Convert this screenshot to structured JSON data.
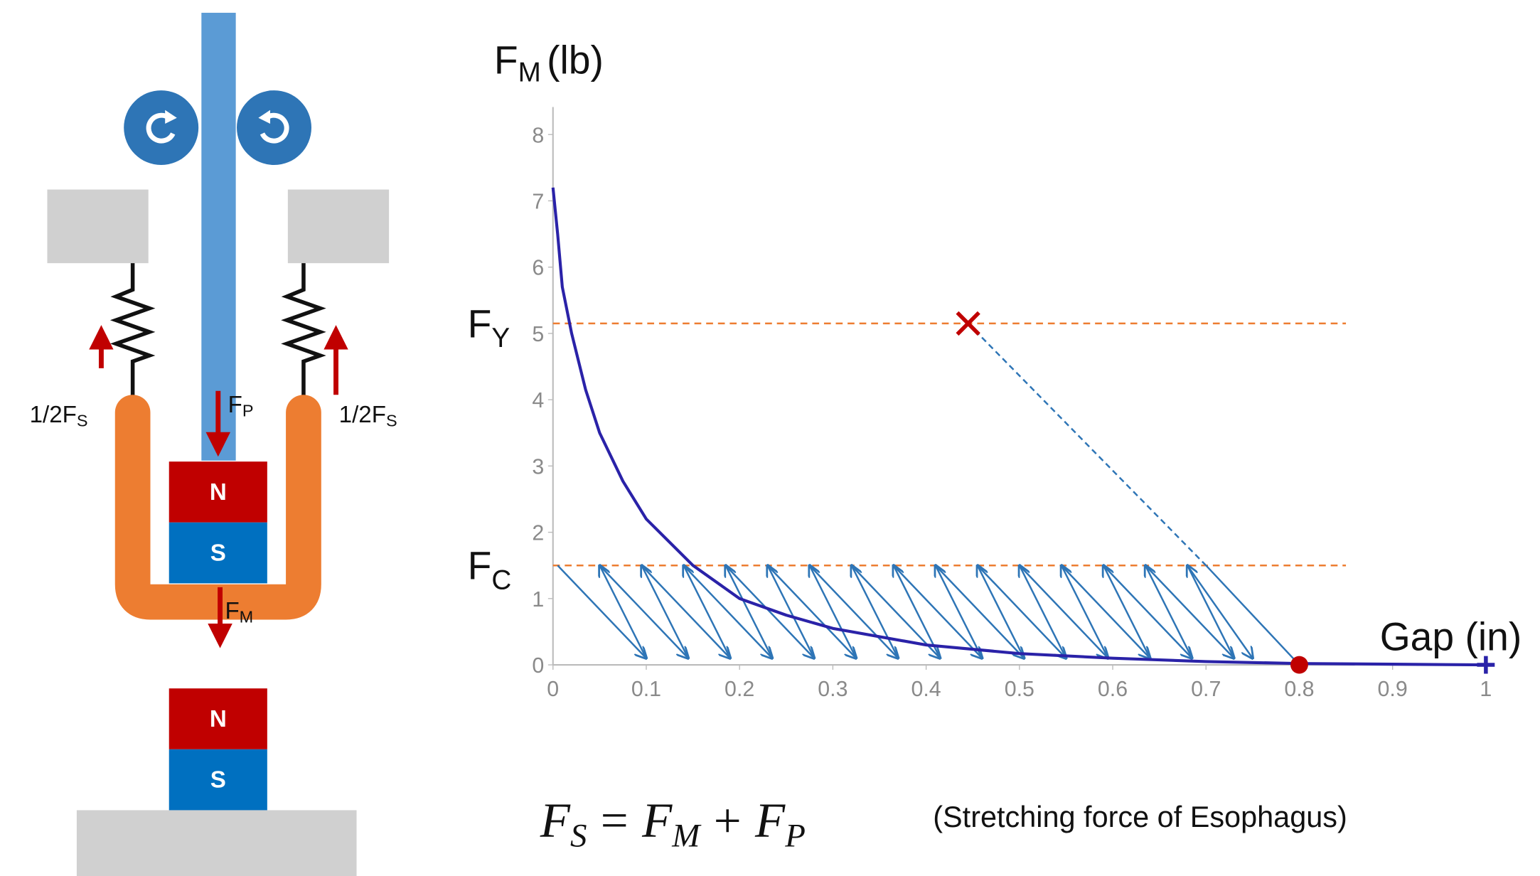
{
  "diagram": {
    "half_fs_left": {
      "base": "1/2F",
      "sub": "S"
    },
    "half_fs_right": {
      "base": "1/2F",
      "sub": "S"
    },
    "fp": {
      "base": "F",
      "sub": "P"
    },
    "fm": {
      "base": "F",
      "sub": "M"
    },
    "magnet_top": {
      "north": "N",
      "south": "S"
    },
    "magnet_bottom": {
      "north": "N",
      "south": "S"
    }
  },
  "chart_data": {
    "type": "line",
    "y_label": {
      "base": "F",
      "sub": "M",
      "unit": "(lb)"
    },
    "x_label": "Gap (in)",
    "x": [
      0,
      0.005,
      0.01,
      0.02,
      0.035,
      0.05,
      0.075,
      0.1,
      0.15,
      0.2,
      0.25,
      0.3,
      0.4,
      0.5,
      0.6,
      0.7,
      0.8,
      0.9,
      1
    ],
    "series": [
      {
        "color": "#2a22a8",
        "values": [
          7.2,
          6.5,
          5.7,
          5.0,
          4.15,
          3.5,
          2.77,
          2.2,
          1.5,
          1.0,
          0.75,
          0.55,
          0.3,
          0.17,
          0.1,
          0.05,
          0.02,
          0.01,
          0
        ]
      }
    ],
    "xlim": [
      0,
      1
    ],
    "ylim": [
      0,
      8
    ],
    "xticks": [
      0,
      0.1,
      0.2,
      0.3,
      0.4,
      0.5,
      0.6,
      0.7,
      0.8,
      0.9,
      1
    ],
    "yticks": [
      0,
      1,
      2,
      3,
      4,
      5,
      6,
      7,
      8
    ],
    "reference_lines": [
      {
        "base": "F",
        "sub": "Y",
        "y": 5.15,
        "x_range": [
          0,
          0.85
        ],
        "color": "#ed7d31"
      },
      {
        "base": "F",
        "sub": "C",
        "y": 1.5,
        "x_range": [
          0,
          0.85
        ],
        "color": "#ed7d31"
      }
    ],
    "arrows": {
      "color": "#2e75b6",
      "y_top": 1.5,
      "y_bottom": 0.1,
      "x_top": [
        0.005,
        0.05,
        0.095,
        0.14,
        0.185,
        0.23,
        0.275,
        0.32,
        0.365,
        0.41,
        0.455,
        0.5,
        0.545,
        0.59,
        0.635,
        0.68
      ],
      "x_bottom": [
        0.1,
        0.145,
        0.19,
        0.235,
        0.28,
        0.325,
        0.37,
        0.415,
        0.46,
        0.505,
        0.55,
        0.595,
        0.64,
        0.685,
        0.73,
        0.75
      ]
    },
    "load_path": {
      "x": [
        0.445,
        0.7,
        0.8
      ],
      "y": [
        5.15,
        1.5,
        0
      ],
      "color": "#2e75b6"
    },
    "yield_point": {
      "x": 0.445,
      "y": 5.15,
      "color": "#c00000"
    },
    "release_point": {
      "x": 0.8,
      "y": 0,
      "color": "#c00000"
    },
    "end_point": {
      "x": 1,
      "y": 0,
      "color": "#2a22a8"
    }
  },
  "equation": {
    "lhs": {
      "base": "F",
      "sub": "S"
    },
    "eq": "=",
    "t1": {
      "base": "F",
      "sub": "M"
    },
    "plus": "+",
    "t2": {
      "base": "F",
      "sub": "P"
    }
  },
  "note": "(Stretching force of Esophagus)"
}
